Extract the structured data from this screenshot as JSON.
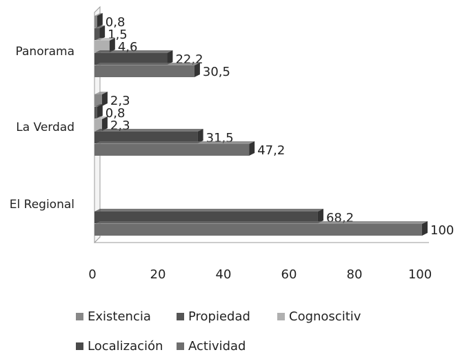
{
  "chart_data": {
    "type": "bar",
    "orientation": "horizontal",
    "categories": [
      "Panorama",
      "La Verdad",
      "El Regional"
    ],
    "series": [
      {
        "name": "Existencia",
        "color": "#888888",
        "values": [
          0.8,
          2.3,
          0
        ],
        "labels": [
          "0,8",
          "2,3",
          ""
        ]
      },
      {
        "name": "Propiedad",
        "color": "#555555",
        "values": [
          1.5,
          0.8,
          0
        ],
        "labels": [
          "1,5",
          "0,8",
          ""
        ]
      },
      {
        "name": "Cognoscitiv",
        "color": "#b0b0b0",
        "values": [
          4.6,
          2.3,
          0
        ],
        "labels": [
          "4,6",
          "2,3",
          ""
        ]
      },
      {
        "name": "Localización",
        "color": "#4a4a4a",
        "values": [
          22.2,
          31.5,
          68.2
        ],
        "labels": [
          "22,2",
          "31,5",
          "68,2"
        ]
      },
      {
        "name": "Actividad",
        "color": "#6e6e6e",
        "values": [
          30.5,
          47.2,
          100
        ],
        "labels": [
          "30,5",
          "47,2",
          "100"
        ]
      }
    ],
    "xlim": [
      0,
      100
    ],
    "xticks": [
      "0",
      "20",
      "40",
      "60",
      "80",
      "100"
    ],
    "grid": false,
    "legend_position": "bottom"
  }
}
